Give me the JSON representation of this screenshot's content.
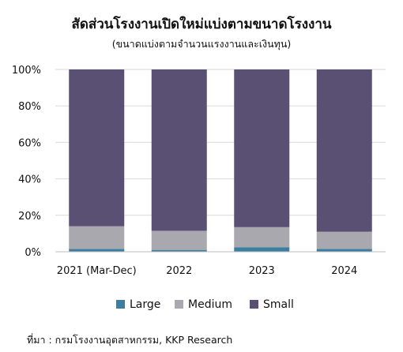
{
  "chart_data": {
    "type": "bar",
    "stacked": true,
    "title": "สัดส่วนโรงงานเปิดใหม่แบ่งตามขนาดโรงงาน",
    "subtitle": "(ขนาดแบ่งตามจำนวนแรงงานและเงินทุน)",
    "categories": [
      "2021 (Mar-Dec)",
      "2022",
      "2023",
      "2024"
    ],
    "series": [
      {
        "name": "Large",
        "color": "#3a7ea1",
        "values": [
          1.5,
          1.0,
          2.5,
          1.5
        ]
      },
      {
        "name": "Medium",
        "color": "#a9a8ae",
        "values": [
          12.5,
          10.5,
          11.0,
          9.5
        ]
      },
      {
        "name": "Small",
        "color": "#5a5073",
        "values": [
          86.0,
          88.5,
          86.5,
          89.0
        ]
      }
    ],
    "y_ticks": [
      "0%",
      "20%",
      "40%",
      "60%",
      "80%",
      "100%"
    ],
    "ylim": [
      0,
      100
    ],
    "grid": true,
    "legend": "bottom",
    "source": "ที่มา : กรมโรงงานอุตสาหกรรม, KKP Research"
  }
}
